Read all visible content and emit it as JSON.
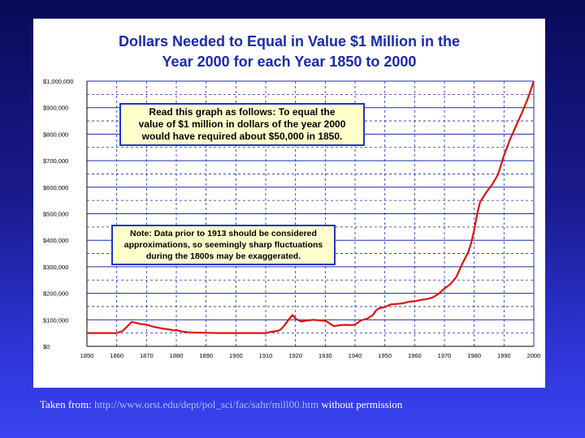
{
  "chart_data": {
    "type": "line",
    "title_line1": "Dollars Needed to Equal in Value $1 Million in the",
    "title_line2": "Year 2000 for each Year 1850 to 2000",
    "xlabel": "",
    "ylabel": "",
    "xlim": [
      1850,
      2000
    ],
    "ylim": [
      0,
      1000000
    ],
    "x_ticks": [
      "1850",
      "1860",
      "1870",
      "1880",
      "1890",
      "1900",
      "1910",
      "1920",
      "1930",
      "1940",
      "1950",
      "1960",
      "1970",
      "1980",
      "1990",
      "2000"
    ],
    "y_ticks": [
      "$0",
      "$100,000",
      "$200,000",
      "$300,000",
      "$400,000",
      "$500,000",
      "$600,000",
      "$700,000",
      "$800,000",
      "$900,000",
      "$1,000,000"
    ],
    "grid": true,
    "line_color": "#dd1111",
    "series": [
      {
        "x": [
          1850,
          1855,
          1860,
          1862,
          1864,
          1865,
          1866,
          1868,
          1870,
          1872,
          1874,
          1876,
          1878,
          1879,
          1880,
          1881,
          1882,
          1884,
          1886,
          1890,
          1895,
          1900,
          1905,
          1910,
          1912,
          1914,
          1915,
          1916,
          1917,
          1918,
          1919,
          1920,
          1921,
          1922,
          1924,
          1926,
          1928,
          1930,
          1931,
          1932,
          1933,
          1935,
          1937,
          1939,
          1940,
          1941,
          1942,
          1944,
          1946,
          1947,
          1948,
          1950,
          1952,
          1954,
          1956,
          1958,
          1960,
          1962,
          1964,
          1966,
          1968,
          1970,
          1972,
          1974,
          1976,
          1978,
          1979,
          1980,
          1981,
          1982,
          1984,
          1986,
          1988,
          1990,
          1992,
          1994,
          1996,
          1998,
          2000
        ],
        "y": [
          50000,
          50000,
          50000,
          58000,
          80000,
          92000,
          90000,
          84000,
          82000,
          75000,
          70000,
          66000,
          63000,
          60000,
          62000,
          58000,
          56000,
          53000,
          52000,
          51000,
          50000,
          50000,
          50000,
          50000,
          55000,
          58000,
          63000,
          75000,
          90000,
          105000,
          118000,
          105000,
          98000,
          94000,
          98000,
          100000,
          98000,
          96000,
          90000,
          82000,
          76000,
          80000,
          81000,
          80000,
          82000,
          90000,
          98000,
          104000,
          118000,
          135000,
          143000,
          148000,
          158000,
          160000,
          162000,
          168000,
          170000,
          175000,
          178000,
          184000,
          198000,
          218000,
          235000,
          262000,
          312000,
          355000,
          390000,
          440000,
          500000,
          545000,
          580000,
          610000,
          648000,
          720000,
          780000,
          830000,
          880000,
          935000,
          1000000
        ]
      }
    ]
  },
  "notes": {
    "note1": [
      "Read this graph as follows:   To equal the",
      "value of $1 million in dollars of the year 2000",
      "would have required about $50,000 in 1850."
    ],
    "note2": [
      "Note:  Data prior to 1913 should be considered",
      "approximations, so seemingly sharp fluctuations",
      "during the 1800s may be exaggerated."
    ]
  },
  "credit": {
    "prefix": "Taken from: ",
    "url": "http://www.orst.edu/dept/pol_sci/fac/sahr/mill00.htm",
    "suffix": " without permission"
  },
  "colors": {
    "title": "#1a2ab0",
    "grid": "#1a2ab0",
    "note_bg": "#ffffcc",
    "line": "#dd1111"
  }
}
